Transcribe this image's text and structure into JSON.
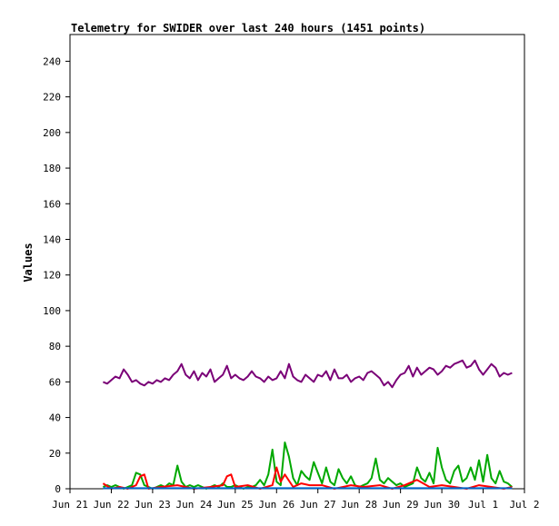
{
  "chart_data": {
    "type": "line",
    "title": "Telemetry for SWIDER over last 240 hours (1451 points)",
    "ylabel": "Values",
    "xlabel": "",
    "ylim": [
      0,
      255
    ],
    "yticks": [
      0,
      20,
      40,
      60,
      80,
      100,
      120,
      140,
      160,
      180,
      200,
      220,
      240
    ],
    "xticks": [
      "Jun 21",
      "Jun 22",
      "Jun 23",
      "Jun 24",
      "Jun 25",
      "Jun 26",
      "Jun 27",
      "Jun 28",
      "Jun 29",
      "Jun 30",
      "Jul 1",
      "Jul 2"
    ],
    "grid": false,
    "legend": "none",
    "series": [
      {
        "color": "#7a0077",
        "x": [
          0.8,
          0.9,
          1.0,
          1.1,
          1.2,
          1.3,
          1.4,
          1.5,
          1.6,
          1.7,
          1.8,
          1.9,
          2.0,
          2.1,
          2.2,
          2.3,
          2.4,
          2.5,
          2.6,
          2.7,
          2.8,
          2.9,
          3.0,
          3.1,
          3.2,
          3.3,
          3.4,
          3.5,
          3.6,
          3.7,
          3.8,
          3.9,
          4.0,
          4.1,
          4.2,
          4.3,
          4.4,
          4.5,
          4.6,
          4.7,
          4.8,
          4.9,
          5.0,
          5.1,
          5.2,
          5.3,
          5.4,
          5.5,
          5.6,
          5.7,
          5.8,
          5.9,
          6.0,
          6.1,
          6.2,
          6.3,
          6.4,
          6.5,
          6.6,
          6.7,
          6.8,
          6.9,
          7.0,
          7.1,
          7.2,
          7.3,
          7.4,
          7.5,
          7.6,
          7.7,
          7.8,
          7.9,
          8.0,
          8.1,
          8.2,
          8.3,
          8.4,
          8.5,
          8.6,
          8.7,
          8.8,
          8.9,
          9.0,
          9.1,
          9.2,
          9.3,
          9.4,
          9.5,
          9.6,
          9.7,
          9.8,
          9.9,
          10.0,
          10.1,
          10.2,
          10.3,
          10.4,
          10.5,
          10.6,
          10.7
        ],
        "y": [
          60,
          59,
          61,
          63,
          62,
          67,
          64,
          60,
          61,
          59,
          58,
          60,
          59,
          61,
          60,
          62,
          61,
          64,
          66,
          70,
          64,
          62,
          66,
          61,
          65,
          63,
          67,
          60,
          62,
          64,
          69,
          62,
          64,
          62,
          61,
          63,
          66,
          63,
          62,
          60,
          63,
          61,
          62,
          66,
          62,
          70,
          63,
          61,
          60,
          64,
          62,
          60,
          64,
          63,
          66,
          61,
          67,
          62,
          62,
          64,
          60,
          62,
          63,
          61,
          65,
          66,
          64,
          62,
          58,
          60,
          57,
          61,
          64,
          65,
          69,
          63,
          68,
          64,
          66,
          68,
          67,
          64,
          66,
          69,
          68,
          70,
          71,
          72,
          68,
          69,
          72,
          67,
          64,
          67,
          70,
          68,
          63,
          65,
          64,
          65
        ]
      },
      {
        "color": "#00a800",
        "x": [
          0.8,
          0.9,
          1.0,
          1.1,
          1.2,
          1.3,
          1.4,
          1.5,
          1.6,
          1.7,
          1.8,
          1.9,
          2.0,
          2.1,
          2.2,
          2.3,
          2.4,
          2.5,
          2.6,
          2.7,
          2.8,
          2.9,
          3.0,
          3.1,
          3.2,
          3.3,
          3.4,
          3.5,
          3.6,
          3.7,
          3.8,
          3.9,
          4.0,
          4.1,
          4.2,
          4.3,
          4.4,
          4.5,
          4.6,
          4.7,
          4.8,
          4.9,
          5.0,
          5.1,
          5.2,
          5.3,
          5.4,
          5.5,
          5.6,
          5.7,
          5.8,
          5.9,
          6.0,
          6.1,
          6.2,
          6.3,
          6.4,
          6.5,
          6.6,
          6.7,
          6.8,
          6.9,
          7.0,
          7.1,
          7.2,
          7.3,
          7.4,
          7.5,
          7.6,
          7.7,
          7.8,
          7.9,
          8.0,
          8.1,
          8.2,
          8.3,
          8.4,
          8.5,
          8.6,
          8.7,
          8.8,
          8.9,
          9.0,
          9.1,
          9.2,
          9.3,
          9.4,
          9.5,
          9.6,
          9.7,
          9.8,
          9.9,
          10.0,
          10.1,
          10.2,
          10.3,
          10.4,
          10.5,
          10.6,
          10.7
        ],
        "y": [
          1,
          2,
          1,
          2,
          1,
          0,
          1,
          2,
          9,
          8,
          2,
          1,
          0,
          1,
          2,
          1,
          3,
          2,
          13,
          4,
          1,
          2,
          1,
          2,
          1,
          0,
          1,
          2,
          1,
          3,
          1,
          1,
          2,
          1,
          0,
          1,
          1,
          2,
          5,
          2,
          8,
          22,
          4,
          2,
          26,
          18,
          6,
          2,
          10,
          7,
          5,
          15,
          9,
          3,
          12,
          4,
          2,
          11,
          6,
          3,
          7,
          2,
          1,
          2,
          3,
          6,
          17,
          5,
          3,
          6,
          4,
          2,
          3,
          1,
          2,
          3,
          12,
          6,
          4,
          9,
          3,
          23,
          12,
          5,
          3,
          10,
          13,
          4,
          6,
          12,
          5,
          16,
          4,
          19,
          6,
          3,
          10,
          4,
          3,
          1
        ]
      },
      {
        "color": "#ff0000",
        "x": [
          0.8,
          1.0,
          1.2,
          1.4,
          1.6,
          1.7,
          1.8,
          1.9,
          2.2,
          2.6,
          3.0,
          3.4,
          3.7,
          3.8,
          3.9,
          4.0,
          4.3,
          4.6,
          4.9,
          5.0,
          5.1,
          5.2,
          5.4,
          5.6,
          5.8,
          6.1,
          6.4,
          6.8,
          7.1,
          7.5,
          7.8,
          8.1,
          8.4,
          8.7,
          9.0,
          9.3,
          9.6,
          9.9,
          10.2,
          10.5,
          10.7
        ],
        "y": [
          3,
          0,
          1,
          0,
          2,
          7,
          8,
          0,
          1,
          2,
          0,
          1,
          2,
          7,
          8,
          1,
          2,
          0,
          2,
          12,
          4,
          8,
          1,
          3,
          2,
          2,
          0,
          2,
          1,
          2,
          0,
          2,
          5,
          1,
          2,
          1,
          0,
          2,
          1,
          0,
          1
        ]
      },
      {
        "color": "#0066cc",
        "x": [
          0.8,
          10.7
        ],
        "y": [
          0.3,
          0.3
        ]
      }
    ]
  }
}
